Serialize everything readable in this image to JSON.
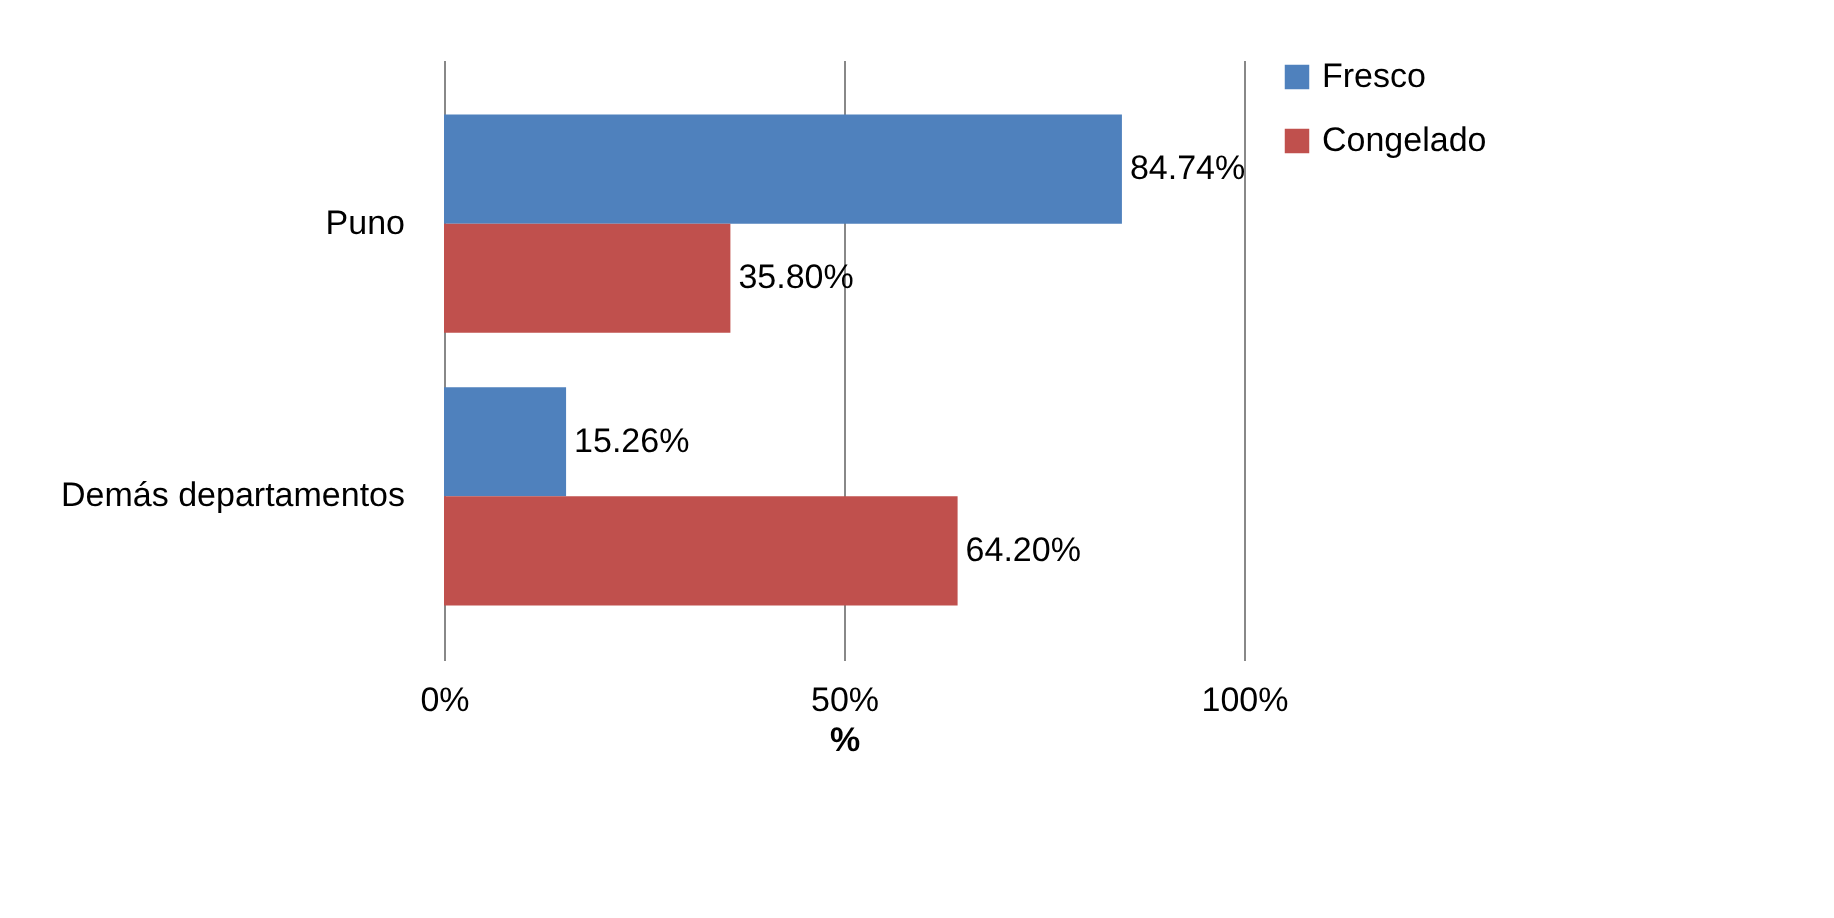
{
  "chart_data": {
    "type": "bar",
    "orientation": "horizontal",
    "xlabel": "%",
    "categories": [
      "Puno",
      "Demás departamentos"
    ],
    "series": [
      {
        "name": "Fresco",
        "color": "#4f81bd",
        "values": [
          84.74,
          15.26
        ],
        "value_labels": [
          "84.74%",
          "15.26%"
        ]
      },
      {
        "name": "Congelado",
        "color": "#c0504d",
        "values": [
          35.8,
          64.2
        ],
        "value_labels": [
          "35.80%",
          "64.20%"
        ]
      }
    ],
    "xlim": [
      0,
      100
    ],
    "xticks": [
      {
        "value": 0,
        "label": "0%"
      },
      {
        "value": 50,
        "label": "50%"
      },
      {
        "value": 100,
        "label": "100%"
      }
    ],
    "grid": "x",
    "legend": "right"
  }
}
